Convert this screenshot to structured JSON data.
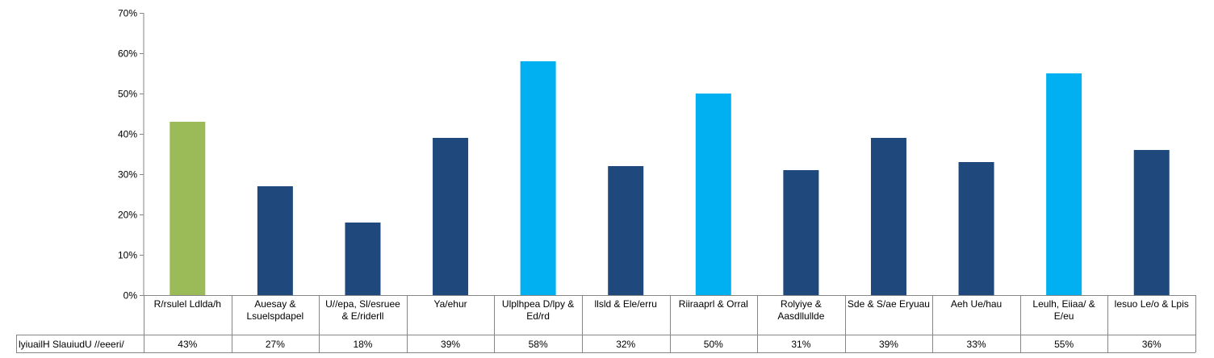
{
  "chart_data": {
    "type": "bar",
    "categories": [
      "R/rsulel Ldlda/h",
      "Auesay & Lsuelspdapel",
      "U//epa, Sl/esruee & E/riderll",
      "Ya/ehur",
      "Ulplhpea D/lpy & Ed/rd",
      "llsld & Ele/erru",
      "Riiraaprl & Orral",
      "Rolyiye & Aasdllullde",
      "Sde & S/ae Eryuau",
      "Aeh Ue/hau",
      "Leulh, Eiiaa/ & E/eu",
      "lesuo Le/o & Lpis"
    ],
    "values": [
      43,
      27,
      18,
      39,
      58,
      32,
      50,
      31,
      39,
      33,
      55,
      36
    ],
    "series": [
      {
        "name": "lyiuailH SlauiudU //eeeri/",
        "values": [
          43,
          27,
          18,
          39,
          58,
          32,
          50,
          31,
          39,
          33,
          55,
          36
        ]
      }
    ],
    "value_labels": [
      "43%",
      "27%",
      "18%",
      "39%",
      "58%",
      "32%",
      "50%",
      "31%",
      "39%",
      "33%",
      "55%",
      "36%"
    ],
    "ylim": [
      0,
      70
    ],
    "yticks": [
      0,
      10,
      20,
      30,
      40,
      50,
      60,
      70
    ],
    "ytick_labels": [
      "0%",
      "10%",
      "20%",
      "30%",
      "40%",
      "50%",
      "60%",
      "70%"
    ],
    "grid": false,
    "data_table": true,
    "bar_colors": [
      "#9BBB59",
      "#1F497D",
      "#1F497D",
      "#1F497D",
      "#00B0F0",
      "#1F497D",
      "#00B0F0",
      "#1F497D",
      "#1F497D",
      "#1F497D",
      "#00B0F0",
      "#1F497D"
    ],
    "axis_color": "#868686",
    "text_color": "#000000"
  }
}
